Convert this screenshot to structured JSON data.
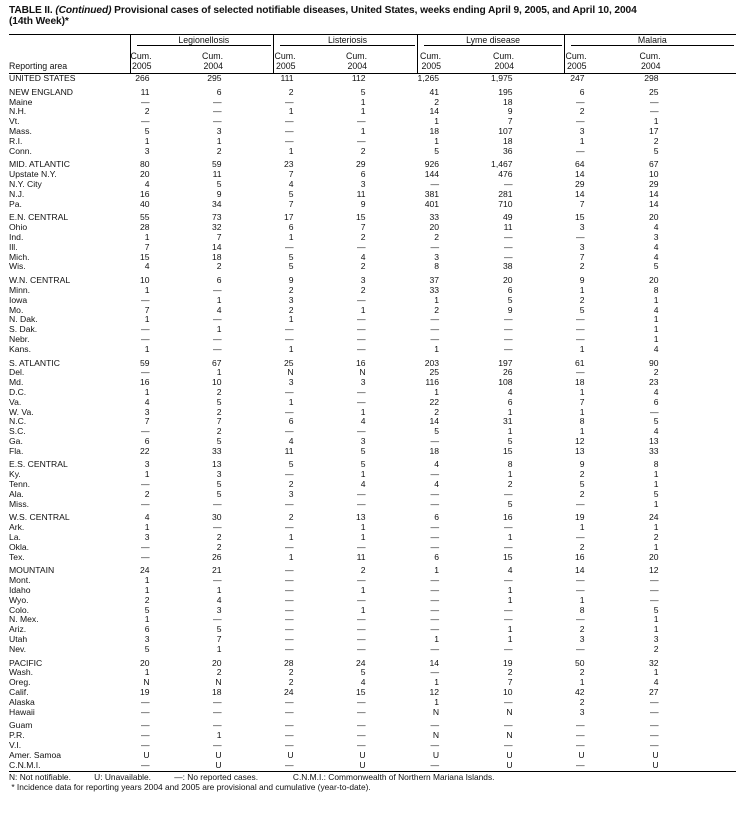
{
  "title": {
    "prefix": "TABLE II. ",
    "continued": "(Continued)",
    "text": " Provisional cases of selected notifiable diseases, United States, weeks ending April 9, 2005, and April 10, 2004",
    "line2": "(14th Week)*"
  },
  "header": {
    "reporting_area": "Reporting area",
    "groups": [
      "Legionellosis",
      "Listeriosis",
      "Lyme disease",
      "Malaria"
    ],
    "subcols": [
      {
        "l1": "Cum.",
        "l2": "2005"
      },
      {
        "l1": "Cum.",
        "l2": "2004"
      },
      {
        "l1": "Cum.",
        "l2": "2005"
      },
      {
        "l1": "Cum.",
        "l2": "2004"
      },
      {
        "l1": "Cum.",
        "l2": "2005"
      },
      {
        "l1": "Cum.",
        "l2": "2004"
      },
      {
        "l1": "Cum.",
        "l2": "2005"
      },
      {
        "l1": "Cum.",
        "l2": "2004"
      }
    ]
  },
  "sections": [
    [
      [
        "UNITED STATES",
        "266",
        "295",
        "111",
        "112",
        "1,265",
        "1,975",
        "247",
        "298"
      ]
    ],
    [
      [
        "NEW ENGLAND",
        "11",
        "6",
        "2",
        "5",
        "41",
        "195",
        "6",
        "25"
      ],
      [
        "Maine",
        "—",
        "—",
        "—",
        "1",
        "2",
        "18",
        "—",
        "—"
      ],
      [
        "N.H.",
        "2",
        "—",
        "1",
        "1",
        "14",
        "9",
        "2",
        "—"
      ],
      [
        "Vt.",
        "—",
        "—",
        "—",
        "—",
        "1",
        "7",
        "—",
        "1"
      ],
      [
        "Mass.",
        "5",
        "3",
        "—",
        "1",
        "18",
        "107",
        "3",
        "17"
      ],
      [
        "R.I.",
        "1",
        "1",
        "—",
        "—",
        "1",
        "18",
        "1",
        "2"
      ],
      [
        "Conn.",
        "3",
        "2",
        "1",
        "2",
        "5",
        "36",
        "—",
        "5"
      ]
    ],
    [
      [
        "MID. ATLANTIC",
        "80",
        "59",
        "23",
        "29",
        "926",
        "1,467",
        "64",
        "67"
      ],
      [
        "Upstate N.Y.",
        "20",
        "11",
        "7",
        "6",
        "144",
        "476",
        "14",
        "10"
      ],
      [
        "N.Y. City",
        "4",
        "5",
        "4",
        "3",
        "—",
        "—",
        "29",
        "29"
      ],
      [
        "N.J.",
        "16",
        "9",
        "5",
        "11",
        "381",
        "281",
        "14",
        "14"
      ],
      [
        "Pa.",
        "40",
        "34",
        "7",
        "9",
        "401",
        "710",
        "7",
        "14"
      ]
    ],
    [
      [
        "E.N. CENTRAL",
        "55",
        "73",
        "17",
        "15",
        "33",
        "49",
        "15",
        "20"
      ],
      [
        "Ohio",
        "28",
        "32",
        "6",
        "7",
        "20",
        "11",
        "3",
        "4"
      ],
      [
        "Ind.",
        "1",
        "7",
        "1",
        "2",
        "2",
        "—",
        "—",
        "3"
      ],
      [
        "Ill.",
        "7",
        "14",
        "—",
        "—",
        "—",
        "—",
        "3",
        "4"
      ],
      [
        "Mich.",
        "15",
        "18",
        "5",
        "4",
        "3",
        "—",
        "7",
        "4"
      ],
      [
        "Wis.",
        "4",
        "2",
        "5",
        "2",
        "8",
        "38",
        "2",
        "5"
      ]
    ],
    [
      [
        "W.N. CENTRAL",
        "10",
        "6",
        "9",
        "3",
        "37",
        "20",
        "9",
        "20"
      ],
      [
        "Minn.",
        "1",
        "—",
        "2",
        "2",
        "33",
        "6",
        "1",
        "8"
      ],
      [
        "Iowa",
        "—",
        "1",
        "3",
        "—",
        "1",
        "5",
        "2",
        "1"
      ],
      [
        "Mo.",
        "7",
        "4",
        "2",
        "1",
        "2",
        "9",
        "5",
        "4"
      ],
      [
        "N. Dak.",
        "1",
        "—",
        "1",
        "—",
        "—",
        "—",
        "—",
        "1"
      ],
      [
        "S. Dak.",
        "—",
        "1",
        "—",
        "—",
        "—",
        "—",
        "—",
        "1"
      ],
      [
        "Nebr.",
        "—",
        "—",
        "—",
        "—",
        "—",
        "—",
        "—",
        "1"
      ],
      [
        "Kans.",
        "1",
        "—",
        "1",
        "—",
        "1",
        "—",
        "1",
        "4"
      ]
    ],
    [
      [
        "S. ATLANTIC",
        "59",
        "67",
        "25",
        "16",
        "203",
        "197",
        "61",
        "90"
      ],
      [
        "Del.",
        "—",
        "1",
        "N",
        "N",
        "25",
        "26",
        "—",
        "2"
      ],
      [
        "Md.",
        "16",
        "10",
        "3",
        "3",
        "116",
        "108",
        "18",
        "23"
      ],
      [
        "D.C.",
        "1",
        "2",
        "—",
        "—",
        "1",
        "4",
        "1",
        "4"
      ],
      [
        "Va.",
        "4",
        "5",
        "1",
        "—",
        "22",
        "6",
        "7",
        "6"
      ],
      [
        "W. Va.",
        "3",
        "2",
        "—",
        "1",
        "2",
        "1",
        "1",
        "—"
      ],
      [
        "N.C.",
        "7",
        "7",
        "6",
        "4",
        "14",
        "31",
        "8",
        "5"
      ],
      [
        "S.C.",
        "—",
        "2",
        "—",
        "—",
        "5",
        "1",
        "1",
        "4"
      ],
      [
        "Ga.",
        "6",
        "5",
        "4",
        "3",
        "—",
        "5",
        "12",
        "13"
      ],
      [
        "Fla.",
        "22",
        "33",
        "11",
        "5",
        "18",
        "15",
        "13",
        "33"
      ]
    ],
    [
      [
        "E.S. CENTRAL",
        "3",
        "13",
        "5",
        "5",
        "4",
        "8",
        "9",
        "8"
      ],
      [
        "Ky.",
        "1",
        "3",
        "—",
        "1",
        "—",
        "1",
        "2",
        "1"
      ],
      [
        "Tenn.",
        "—",
        "5",
        "2",
        "4",
        "4",
        "2",
        "5",
        "1"
      ],
      [
        "Ala.",
        "2",
        "5",
        "3",
        "—",
        "—",
        "—",
        "2",
        "5"
      ],
      [
        "Miss.",
        "—",
        "—",
        "—",
        "—",
        "—",
        "5",
        "—",
        "1"
      ]
    ],
    [
      [
        "W.S. CENTRAL",
        "4",
        "30",
        "2",
        "13",
        "6",
        "16",
        "19",
        "24"
      ],
      [
        "Ark.",
        "1",
        "—",
        "—",
        "1",
        "—",
        "—",
        "1",
        "1"
      ],
      [
        "La.",
        "3",
        "2",
        "1",
        "1",
        "—",
        "1",
        "—",
        "2"
      ],
      [
        "Okla.",
        "—",
        "2",
        "—",
        "—",
        "—",
        "—",
        "2",
        "1"
      ],
      [
        "Tex.",
        "—",
        "26",
        "1",
        "11",
        "6",
        "15",
        "16",
        "20"
      ]
    ],
    [
      [
        "MOUNTAIN",
        "24",
        "21",
        "—",
        "2",
        "1",
        "4",
        "14",
        "12"
      ],
      [
        "Mont.",
        "1",
        "—",
        "—",
        "—",
        "—",
        "—",
        "—",
        "—"
      ],
      [
        "Idaho",
        "1",
        "1",
        "—",
        "1",
        "—",
        "1",
        "—",
        "—"
      ],
      [
        "Wyo.",
        "2",
        "4",
        "—",
        "—",
        "—",
        "1",
        "1",
        "—"
      ],
      [
        "Colo.",
        "5",
        "3",
        "—",
        "1",
        "—",
        "—",
        "8",
        "5"
      ],
      [
        "N. Mex.",
        "1",
        "—",
        "—",
        "—",
        "—",
        "—",
        "—",
        "1"
      ],
      [
        "Ariz.",
        "6",
        "5",
        "—",
        "—",
        "—",
        "1",
        "2",
        "1"
      ],
      [
        "Utah",
        "3",
        "7",
        "—",
        "—",
        "1",
        "1",
        "3",
        "3"
      ],
      [
        "Nev.",
        "5",
        "1",
        "—",
        "—",
        "—",
        "—",
        "—",
        "2"
      ]
    ],
    [
      [
        "PACIFIC",
        "20",
        "20",
        "28",
        "24",
        "14",
        "19",
        "50",
        "32"
      ],
      [
        "Wash.",
        "1",
        "2",
        "2",
        "5",
        "—",
        "2",
        "2",
        "1"
      ],
      [
        "Oreg.",
        "N",
        "N",
        "2",
        "4",
        "1",
        "7",
        "1",
        "4"
      ],
      [
        "Calif.",
        "19",
        "18",
        "24",
        "15",
        "12",
        "10",
        "42",
        "27"
      ],
      [
        "Alaska",
        "—",
        "—",
        "—",
        "—",
        "1",
        "—",
        "2",
        "—"
      ],
      [
        "Hawaii",
        "—",
        "—",
        "—",
        "—",
        "N",
        "N",
        "3",
        "—"
      ]
    ],
    [
      [
        "Guam",
        "—",
        "—",
        "—",
        "—",
        "—",
        "—",
        "—",
        "—"
      ],
      [
        "P.R.",
        "—",
        "1",
        "—",
        "—",
        "N",
        "N",
        "—",
        "—"
      ],
      [
        "V.I.",
        "—",
        "—",
        "—",
        "—",
        "—",
        "—",
        "—",
        "—"
      ],
      [
        "Amer. Samoa",
        "U",
        "U",
        "U",
        "U",
        "U",
        "U",
        "U",
        "U"
      ],
      [
        "C.N.M.I.",
        "—",
        "U",
        "—",
        "U",
        "—",
        "U",
        "—",
        "U"
      ]
    ]
  ],
  "footer": {
    "legend": "N: Not notifiable.          U: Unavailable.          —: No reported cases.               C.N.M.I.: Commonwealth of Northern Mariana Islands.",
    "note": " * Incidence data for reporting years 2004 and 2005 are provisional and cumulative (year-to-date)."
  }
}
